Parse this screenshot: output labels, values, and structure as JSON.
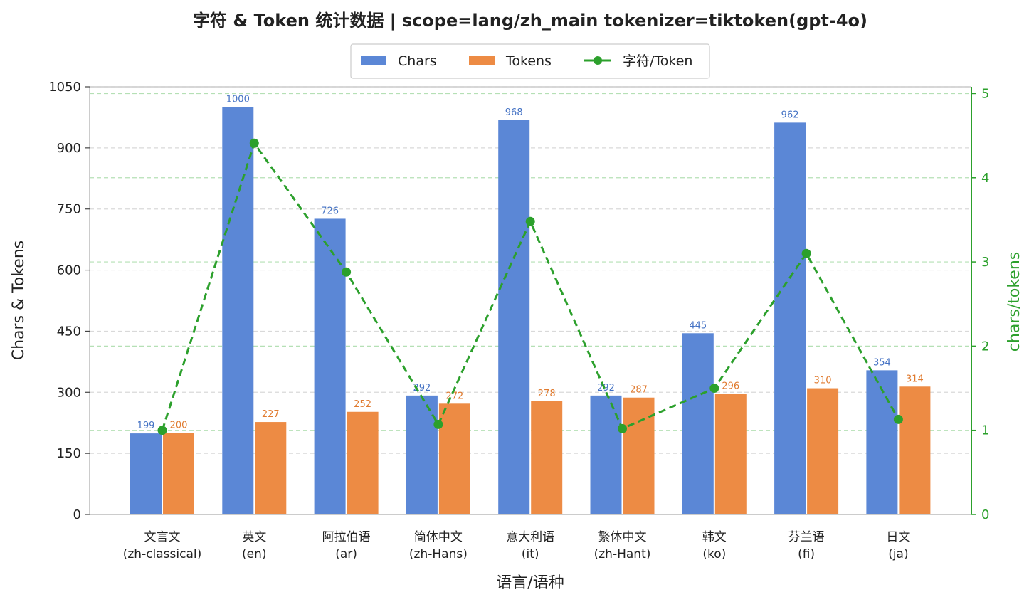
{
  "chart_data": {
    "type": "bar",
    "title": "字符 & Token 统计数据  |  scope=lang/zh_main  tokenizer=tiktoken(gpt-4o)",
    "xlabel": "语言/语种",
    "ylabel": "Chars & Tokens",
    "y2label": "chars/tokens",
    "ylim": [
      0,
      1050
    ],
    "y2lim": [
      0,
      5.08
    ],
    "yticks": [
      0,
      150,
      300,
      450,
      600,
      750,
      900,
      1050
    ],
    "y2ticks": [
      0,
      1,
      2,
      3,
      4,
      5
    ],
    "categories": [
      {
        "name": "文言文",
        "code": "(zh-classical)"
      },
      {
        "name": "英文",
        "code": "(en)"
      },
      {
        "name": "阿拉伯语",
        "code": "(ar)"
      },
      {
        "name": "简体中文",
        "code": "(zh-Hans)"
      },
      {
        "name": "意大利语",
        "code": "(it)"
      },
      {
        "name": "繁体中文",
        "code": "(zh-Hant)"
      },
      {
        "name": "韩文",
        "code": "(ko)"
      },
      {
        "name": "芬兰语",
        "code": "(fi)"
      },
      {
        "name": "日文",
        "code": "(ja)"
      }
    ],
    "series": [
      {
        "name": "Chars",
        "kind": "bar",
        "axis": "left",
        "color": "#5b87d6",
        "label_color": "#4472c4",
        "values": [
          199,
          1000,
          726,
          292,
          968,
          292,
          445,
          962,
          354
        ]
      },
      {
        "name": "Tokens",
        "kind": "bar",
        "axis": "left",
        "color": "#ed8b44",
        "label_color": "#e07b30",
        "values": [
          200,
          227,
          252,
          272,
          278,
          287,
          296,
          310,
          314
        ]
      },
      {
        "name": "字符/Token",
        "kind": "line",
        "axis": "right",
        "color": "#2ca02c",
        "values": [
          1.0,
          4.41,
          2.88,
          1.07,
          3.48,
          1.02,
          1.5,
          3.1,
          1.13
        ]
      }
    ],
    "legend_position": "top-center",
    "grid": true
  }
}
